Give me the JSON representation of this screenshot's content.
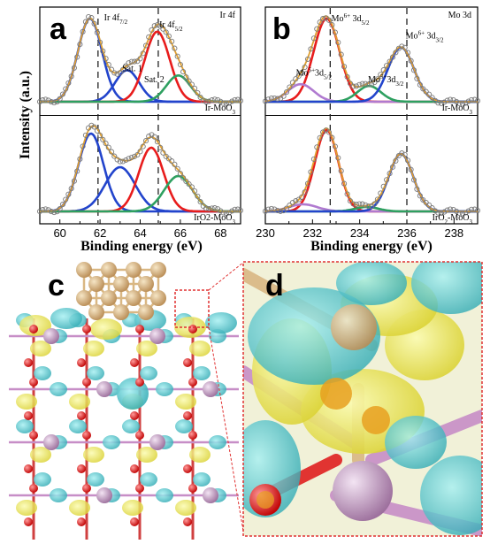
{
  "figure": {
    "panel_labels": {
      "a": "a",
      "b": "b",
      "c": "c",
      "d": "d"
    },
    "colors": {
      "envelope": "#e0a030",
      "blue": "#2244cc",
      "red": "#e81c1c",
      "green": "#2ea060",
      "purple": "#b07ad0",
      "baseline": "#5c4033",
      "points": "#7a7a7a",
      "grid_dash": "#222222",
      "zoom_box": "#e03030",
      "iso_yellow": "#e8e84a",
      "iso_cyan": "#40c0c8",
      "atom_ir": "#d9b783",
      "atom_mo": "#c8a0c8",
      "atom_o": "#e02020"
    },
    "shared_ylabel": "Intensity (a.u.)"
  },
  "chart_data": [
    {
      "id": "a",
      "type": "line",
      "title_tag": "Ir 4f",
      "xlabel": "Binding energy (eV)",
      "xlim": [
        59,
        69
      ],
      "xticks": [
        "60",
        "62",
        "64",
        "66",
        "68"
      ],
      "dashed_lines_x": [
        61.9,
        64.9
      ],
      "subplots": [
        {
          "sample": "Ir-MoO3",
          "sample_text": "Ir-MoO",
          "sample_sub": "3",
          "ylim": [
            0,
            1
          ],
          "labels": [
            {
              "text": "Ir 4f",
              "sub": "7/2",
              "x": 62.2,
              "y": 0.93
            },
            {
              "text": "Ir 4f",
              "sub": "5/2",
              "x": 64.95,
              "y": 0.85
            },
            {
              "text": "Sat. 1",
              "sub": "",
              "x": 63.1,
              "y": 0.35
            },
            {
              "text": "Sat. 2",
              "sub": "",
              "x": 64.2,
              "y": 0.22
            }
          ],
          "peaks": [
            {
              "name": "Ir 4f7/2",
              "color": "blue",
              "center": 61.5,
              "sigma": 0.6,
              "height": 0.95
            },
            {
              "name": "Sat. 1",
              "color": "blue",
              "center": 63.35,
              "sigma": 0.6,
              "height": 0.36
            },
            {
              "name": "Ir 4f5/2",
              "color": "red",
              "center": 64.85,
              "sigma": 0.62,
              "height": 0.8
            },
            {
              "name": "Sat. 2",
              "color": "green",
              "center": 65.9,
              "sigma": 0.6,
              "height": 0.3
            }
          ]
        },
        {
          "sample": "IrO2-MoO3",
          "sample_text": "IrO2-MoO",
          "sample_sub": "3",
          "ylim": [
            0,
            1
          ],
          "labels": [],
          "peaks": [
            {
              "name": "Ir 4f7/2",
              "color": "blue",
              "center": 61.55,
              "sigma": 0.62,
              "height": 0.88
            },
            {
              "name": "Sat. 1",
              "color": "blue",
              "center": 63.0,
              "sigma": 0.75,
              "height": 0.5
            },
            {
              "name": "Ir 4f5/2",
              "color": "red",
              "center": 64.55,
              "sigma": 0.62,
              "height": 0.72
            },
            {
              "name": "Sat. 2",
              "color": "green",
              "center": 65.9,
              "sigma": 0.7,
              "height": 0.4
            }
          ]
        }
      ]
    },
    {
      "id": "b",
      "type": "line",
      "title_tag": "Mo 3d",
      "xlabel": "Binding energy (eV)",
      "xlim": [
        230,
        239
      ],
      "xticks": [
        "230",
        "232",
        "234",
        "236",
        "238"
      ],
      "dashed_lines_x": [
        232.75,
        236.0
      ],
      "subplots": [
        {
          "sample": "Ir-MoO3",
          "sample_text": "Ir-MoO",
          "sample_sub": "3",
          "ylim": [
            0,
            1
          ],
          "labels": [
            {
              "text": "Mo",
              "sup": "6+",
              "text2": " 3d",
              "sub": "5/2",
              "x": 232.8,
              "y": 0.92
            },
            {
              "text": "Mo",
              "sup": "6+",
              "text2": " 3d",
              "sub": "3/2",
              "x": 235.95,
              "y": 0.72
            },
            {
              "text": "Mo",
              "sup": "5+",
              "text2": "3d",
              "sub": "5/2",
              "x": 231.3,
              "y": 0.3
            },
            {
              "text": "Mo",
              "sup": "5+",
              "text2": "3d",
              "sub": "3/2",
              "x": 234.35,
              "y": 0.22
            }
          ],
          "peaks": [
            {
              "name": "Mo6+ 3d5/2",
              "color": "red",
              "center": 232.6,
              "sigma": 0.55,
              "height": 0.95
            },
            {
              "name": "Mo5+ 3d5/2",
              "color": "purple",
              "center": 231.5,
              "sigma": 0.55,
              "height": 0.2
            },
            {
              "name": "Mo5+ 3d3/2",
              "color": "green",
              "center": 234.4,
              "sigma": 0.5,
              "height": 0.18
            },
            {
              "name": "Mo6+ 3d3/2",
              "color": "blue",
              "center": 235.75,
              "sigma": 0.55,
              "height": 0.62
            }
          ]
        },
        {
          "sample": "IrO2-MoO3",
          "sample_text": "IrO",
          "sample_sub": "2",
          "sample_text2": "-MoO",
          "sample_sub2": "3",
          "ylim": [
            0,
            1
          ],
          "labels": [],
          "peaks": [
            {
              "name": "Mo6+ 3d5/2",
              "color": "red",
              "center": 232.6,
              "sigma": 0.5,
              "height": 0.92
            },
            {
              "name": "Mo5+ 3d5/2",
              "color": "purple",
              "center": 231.6,
              "sigma": 0.6,
              "height": 0.08
            },
            {
              "name": "Mo5+ 3d3/2",
              "color": "green",
              "center": 234.3,
              "sigma": 0.5,
              "height": 0.05
            },
            {
              "name": "Mo6+ 3d3/2",
              "color": "blue",
              "center": 235.75,
              "sigma": 0.52,
              "height": 0.65
            }
          ]
        }
      ]
    }
  ]
}
